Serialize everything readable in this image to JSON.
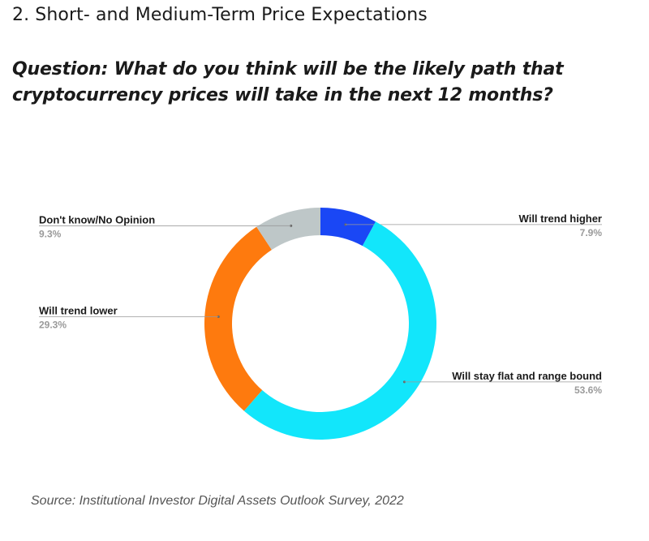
{
  "page": {
    "heading": "2. Short- and Medium-Term Price Expectations",
    "question": "Question: What do you think will be the likely path that cryptocurrency prices will take in the next 12 months?",
    "source": "Source: Institutional Investor Digital Assets Outlook Survey, 2022"
  },
  "chart_data": {
    "type": "pie",
    "donut": true,
    "slices": [
      {
        "name": "Will trend higher",
        "value": 7.9,
        "label": "7.9%",
        "color": "#1a47f5",
        "label_side": "right"
      },
      {
        "name": "Will stay flat and range bound",
        "value": 53.6,
        "label": "53.6%",
        "color": "#12e6fb",
        "label_side": "right"
      },
      {
        "name": "Will trend lower",
        "value": 29.3,
        "label": "29.3%",
        "color": "#fe7a0e",
        "label_side": "left"
      },
      {
        "name": "Don't know/No Opinion",
        "value": 9.3,
        "label": "9.3%",
        "color": "#bec7c8",
        "label_side": "left"
      }
    ]
  }
}
